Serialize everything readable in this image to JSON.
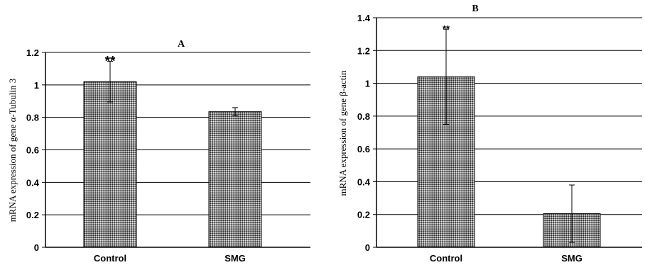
{
  "chart_data": [
    {
      "type": "bar",
      "title": "A",
      "ylabel": "mRNA expression of gene α-Tubulin 3",
      "xlabel": "",
      "categories": [
        "Control",
        "SMG"
      ],
      "values": [
        1.02,
        0.835
      ],
      "errors": [
        0.125,
        0.025
      ],
      "annotations": [
        "**",
        ""
      ],
      "ylim": [
        0,
        1.2
      ],
      "yticks": [
        0,
        0.2,
        0.4,
        0.6,
        0.8,
        1,
        1.2
      ],
      "ytick_labels": [
        "0",
        "0.2",
        "0.4",
        "0.6",
        "0.8",
        "1",
        "1.2"
      ],
      "grid": true,
      "bar_pattern": "dotted-dark-gray"
    },
    {
      "type": "bar",
      "title": "B",
      "ylabel": "mRNA expression of gene β-actin",
      "xlabel": "",
      "categories": [
        "Control",
        "SMG"
      ],
      "values": [
        1.04,
        0.205
      ],
      "errors": [
        0.29,
        0.175
      ],
      "annotations": [
        "**",
        ""
      ],
      "ylim": [
        0,
        1.4
      ],
      "yticks": [
        0,
        0.2,
        0.4,
        0.6,
        0.8,
        1,
        1.2,
        1.4
      ],
      "ytick_labels": [
        "0",
        "0.2",
        "0.4",
        "0.6",
        "0.8",
        "1",
        "1.2",
        "1.4"
      ],
      "grid": true,
      "bar_pattern": "dotted-dark-gray"
    }
  ]
}
